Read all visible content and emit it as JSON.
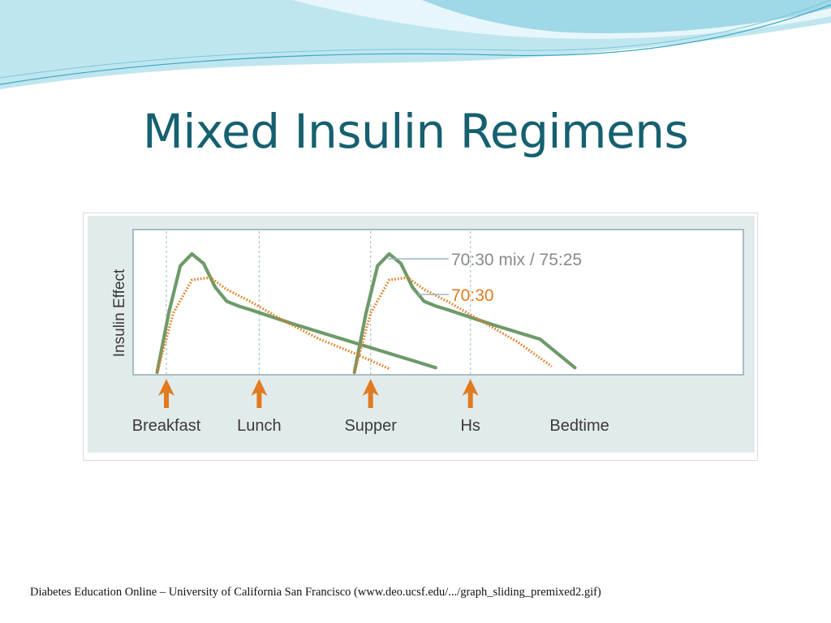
{
  "slide": {
    "title": "Mixed Insulin Regimens",
    "source": "Diabetes Education Online – University of California San Francisco (www.deo.ucsf.edu/.../graph_sliding_premixed2.gif)"
  },
  "colors": {
    "title": "#16606f",
    "green_series": "#6e9a6a",
    "orange_series": "#e07b1f",
    "arrow": "#e07b1f",
    "panel": "#e2ebec",
    "plot_bg": "#ffffff",
    "guide_line": "#a9c3c9",
    "axis": "#8faab0"
  },
  "chart_data": {
    "type": "line",
    "ylabel": "Insulin Effect",
    "xlabel": "",
    "y_ticks": false,
    "grid": false,
    "x_unit": "hours after breakfast",
    "xlim": [
      -0.3,
      18.2
    ],
    "ylim": [
      0,
      1
    ],
    "series": [
      {
        "name": "70:30 mix / 75:25",
        "color": "#6e9a6a",
        "style": "solid",
        "segments": [
          [
            [
              0,
              0
            ],
            [
              0.5,
              0.5
            ],
            [
              1,
              0.9
            ],
            [
              1.5,
              1.0
            ],
            [
              2,
              0.92
            ],
            [
              2.5,
              0.72
            ],
            [
              3,
              0.6
            ],
            [
              3.5,
              0.56
            ],
            [
              4,
              0.53
            ],
            [
              6,
              0.4
            ],
            [
              8,
              0.28
            ],
            [
              10,
              0.16
            ],
            [
              12,
              0.04
            ]
          ],
          [
            [
              8.5,
              0
            ],
            [
              9,
              0.5
            ],
            [
              9.5,
              0.9
            ],
            [
              10,
              1.0
            ],
            [
              10.5,
              0.92
            ],
            [
              11,
              0.72
            ],
            [
              11.5,
              0.6
            ],
            [
              12,
              0.56
            ],
            [
              12.5,
              0.53
            ],
            [
              14.5,
              0.4
            ],
            [
              16.5,
              0.28
            ],
            [
              18,
              0.04
            ]
          ]
        ]
      },
      {
        "name": "70:30",
        "color": "#e07b1f",
        "style": "dotted",
        "segments": [
          [
            [
              0,
              0
            ],
            [
              0.7,
              0.5
            ],
            [
              1.5,
              0.78
            ],
            [
              2.3,
              0.8
            ],
            [
              3,
              0.7
            ],
            [
              4,
              0.6
            ],
            [
              5.5,
              0.43
            ],
            [
              7,
              0.28
            ],
            [
              8.5,
              0.16
            ],
            [
              10,
              0.03
            ]
          ],
          [
            [
              8.5,
              0
            ],
            [
              9.2,
              0.5
            ],
            [
              10,
              0.78
            ],
            [
              10.8,
              0.8
            ],
            [
              11.5,
              0.7
            ],
            [
              12.5,
              0.6
            ],
            [
              14,
              0.43
            ],
            [
              15.5,
              0.26
            ],
            [
              17,
              0.05
            ]
          ]
        ]
      }
    ],
    "meals": [
      {
        "label": "Breakfast",
        "x": 0.4
      },
      {
        "label": "Lunch",
        "x": 4.4
      },
      {
        "label": "Supper",
        "x": 9.2
      },
      {
        "label": "Hs",
        "x": 13.5
      },
      {
        "label": "Bedtime",
        "x": 18.2
      }
    ],
    "guide_lines_x": [
      0.4,
      4.4,
      9.2,
      13.5
    ]
  }
}
